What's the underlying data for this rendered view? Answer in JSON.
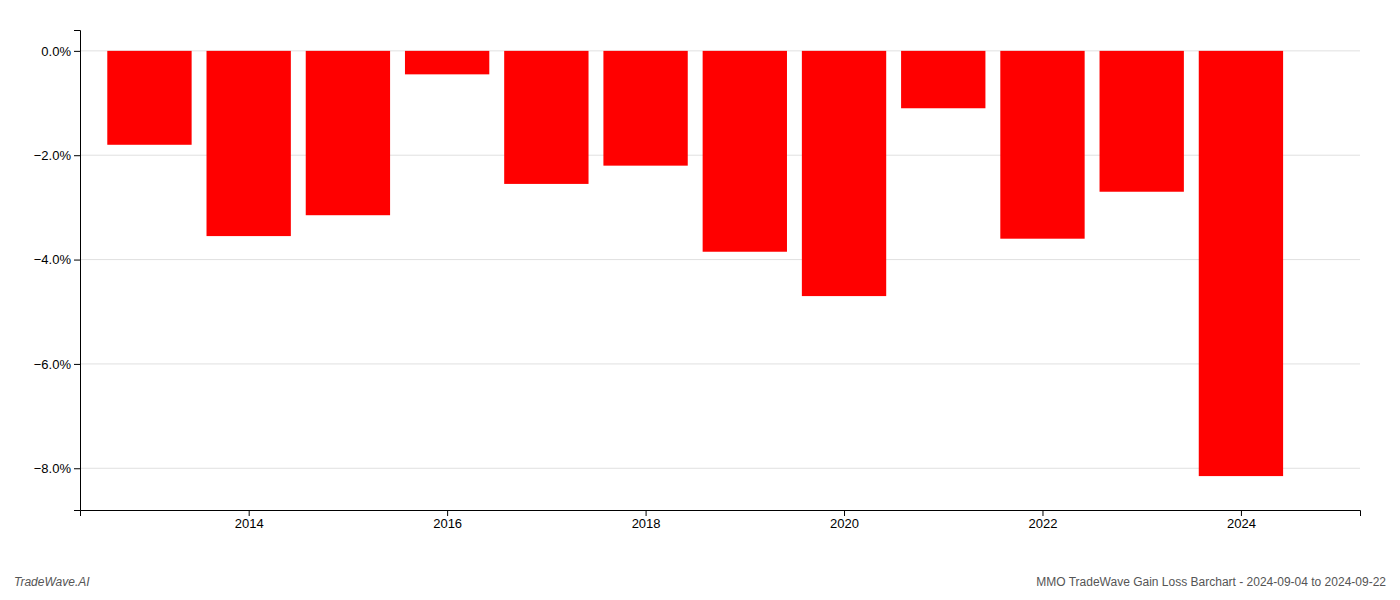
{
  "chart_data": {
    "type": "bar",
    "title": "MMO TradeWave Gain Loss Barchart - 2024-09-04 to 2024-09-22",
    "annotations": [
      "TradeWave.AI"
    ],
    "x": [
      2013,
      2014,
      2015,
      2016,
      2017,
      2018,
      2019,
      2020,
      2021,
      2022,
      2023,
      2024
    ],
    "values": [
      -1.8,
      -3.55,
      -3.15,
      -0.45,
      -2.55,
      -2.2,
      -3.85,
      -4.7,
      -1.1,
      -3.6,
      -2.7,
      -8.15
    ],
    "color": "#ff0000",
    "xlim": [
      2012.3,
      2025.2
    ],
    "xticks": [
      2014,
      2016,
      2018,
      2020,
      2022,
      2024
    ],
    "ylim": [
      -8.8,
      0.4
    ],
    "yticks": [
      {
        "value": 0.0,
        "label": "0.0%"
      },
      {
        "value": -2.0,
        "label": "−2.0%"
      },
      {
        "value": -4.0,
        "label": "−4.0%"
      },
      {
        "value": -6.0,
        "label": "−6.0%"
      },
      {
        "value": -8.0,
        "label": "−8.0%"
      }
    ],
    "grid": true
  }
}
